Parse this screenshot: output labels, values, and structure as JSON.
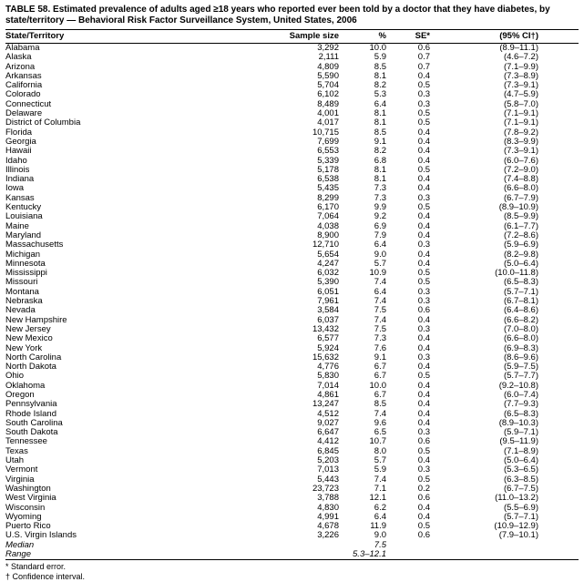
{
  "page": {
    "title": "TABLE 58. Estimated prevalence of adults aged ≥18 years who reported ever been told by a doctor that they have diabetes, by state/territory — Behavioral Risk Factor Surveillance System, United States, 2006"
  },
  "table": {
    "columns": [
      "State/Territory",
      "Sample size",
      "%",
      "SE*",
      "(95% CI†)"
    ],
    "rows": [
      [
        "Alabama",
        "3,292",
        "10.0",
        "0.6",
        "(8.9–11.1)"
      ],
      [
        "Alaska",
        "2,111",
        "5.9",
        "0.7",
        "(4.6–7.2)"
      ],
      [
        "Arizona",
        "4,809",
        "8.5",
        "0.7",
        "(7.1–9.9)"
      ],
      [
        "Arkansas",
        "5,590",
        "8.1",
        "0.4",
        "(7.3–8.9)"
      ],
      [
        "California",
        "5,704",
        "8.2",
        "0.5",
        "(7.3–9.1)"
      ],
      [
        "Colorado",
        "6,102",
        "5.3",
        "0.3",
        "(4.7–5.9)"
      ],
      [
        "Connecticut",
        "8,489",
        "6.4",
        "0.3",
        "(5.8–7.0)"
      ],
      [
        "Delaware",
        "4,001",
        "8.1",
        "0.5",
        "(7.1–9.1)"
      ],
      [
        "District of Columbia",
        "4,017",
        "8.1",
        "0.5",
        "(7.1–9.1)"
      ],
      [
        "Florida",
        "10,715",
        "8.5",
        "0.4",
        "(7.8–9.2)"
      ],
      [
        "Georgia",
        "7,699",
        "9.1",
        "0.4",
        "(8.3–9.9)"
      ],
      [
        "Hawaii",
        "6,553",
        "8.2",
        "0.4",
        "(7.3–9.1)"
      ],
      [
        "Idaho",
        "5,339",
        "6.8",
        "0.4",
        "(6.0–7.6)"
      ],
      [
        "Illinois",
        "5,178",
        "8.1",
        "0.5",
        "(7.2–9.0)"
      ],
      [
        "Indiana",
        "6,538",
        "8.1",
        "0.4",
        "(7.4–8.8)"
      ],
      [
        "Iowa",
        "5,435",
        "7.3",
        "0.4",
        "(6.6–8.0)"
      ],
      [
        "Kansas",
        "8,299",
        "7.3",
        "0.3",
        "(6.7–7.9)"
      ],
      [
        "Kentucky",
        "6,170",
        "9.9",
        "0.5",
        "(8.9–10.9)"
      ],
      [
        "Louisiana",
        "7,064",
        "9.2",
        "0.4",
        "(8.5–9.9)"
      ],
      [
        "Maine",
        "4,038",
        "6.9",
        "0.4",
        "(6.1–7.7)"
      ],
      [
        "Maryland",
        "8,900",
        "7.9",
        "0.4",
        "(7.2–8.6)"
      ],
      [
        "Massachusetts",
        "12,710",
        "6.4",
        "0.3",
        "(5.9–6.9)"
      ],
      [
        "Michigan",
        "5,654",
        "9.0",
        "0.4",
        "(8.2–9.8)"
      ],
      [
        "Minnesota",
        "4,247",
        "5.7",
        "0.4",
        "(5.0–6.4)"
      ],
      [
        "Mississippi",
        "6,032",
        "10.9",
        "0.5",
        "(10.0–11.8)"
      ],
      [
        "Missouri",
        "5,390",
        "7.4",
        "0.5",
        "(6.5–8.3)"
      ],
      [
        "Montana",
        "6,051",
        "6.4",
        "0.3",
        "(5.7–7.1)"
      ],
      [
        "Nebraska",
        "7,961",
        "7.4",
        "0.3",
        "(6.7–8.1)"
      ],
      [
        "Nevada",
        "3,584",
        "7.5",
        "0.6",
        "(6.4–8.6)"
      ],
      [
        "New Hampshire",
        "6,037",
        "7.4",
        "0.4",
        "(6.6–8.2)"
      ],
      [
        "New Jersey",
        "13,432",
        "7.5",
        "0.3",
        "(7.0–8.0)"
      ],
      [
        "New Mexico",
        "6,577",
        "7.3",
        "0.4",
        "(6.6–8.0)"
      ],
      [
        "New York",
        "5,924",
        "7.6",
        "0.4",
        "(6.9–8.3)"
      ],
      [
        "North Carolina",
        "15,632",
        "9.1",
        "0.3",
        "(8.6–9.6)"
      ],
      [
        "North Dakota",
        "4,776",
        "6.7",
        "0.4",
        "(5.9–7.5)"
      ],
      [
        "Ohio",
        "5,830",
        "6.7",
        "0.5",
        "(5.7–7.7)"
      ],
      [
        "Oklahoma",
        "7,014",
        "10.0",
        "0.4",
        "(9.2–10.8)"
      ],
      [
        "Oregon",
        "4,861",
        "6.7",
        "0.4",
        "(6.0–7.4)"
      ],
      [
        "Pennsylvania",
        "13,247",
        "8.5",
        "0.4",
        "(7.7–9.3)"
      ],
      [
        "Rhode Island",
        "4,512",
        "7.4",
        "0.4",
        "(6.5–8.3)"
      ],
      [
        "South Carolina",
        "9,027",
        "9.6",
        "0.4",
        "(8.9–10.3)"
      ],
      [
        "South Dakota",
        "6,647",
        "6.5",
        "0.3",
        "(5.9–7.1)"
      ],
      [
        "Tennessee",
        "4,412",
        "10.7",
        "0.6",
        "(9.5–11.9)"
      ],
      [
        "Texas",
        "6,845",
        "8.0",
        "0.5",
        "(7.1–8.9)"
      ],
      [
        "Utah",
        "5,203",
        "5.7",
        "0.4",
        "(5.0–6.4)"
      ],
      [
        "Vermont",
        "7,013",
        "5.9",
        "0.3",
        "(5.3–6.5)"
      ],
      [
        "Virginia",
        "5,443",
        "7.4",
        "0.5",
        "(6.3–8.5)"
      ],
      [
        "Washington",
        "23,723",
        "7.1",
        "0.2",
        "(6.7–7.5)"
      ],
      [
        "West Virginia",
        "3,788",
        "12.1",
        "0.6",
        "(11.0–13.2)"
      ],
      [
        "Wisconsin",
        "4,830",
        "6.2",
        "0.4",
        "(5.5–6.9)"
      ],
      [
        "Wyoming",
        "4,991",
        "6.4",
        "0.4",
        "(5.7–7.1)"
      ],
      [
        "Puerto Rico",
        "4,678",
        "11.9",
        "0.5",
        "(10.9–12.9)"
      ],
      [
        "U.S. Virgin Islands",
        "3,226",
        "9.0",
        "0.6",
        "(7.9–10.1)"
      ]
    ],
    "summary_rows": [
      {
        "label": "Median",
        "value": "7.5"
      },
      {
        "label": "Range",
        "value": "5.3–12.1"
      }
    ],
    "footnotes": [
      "* Standard error.",
      "† Confidence interval."
    ]
  }
}
